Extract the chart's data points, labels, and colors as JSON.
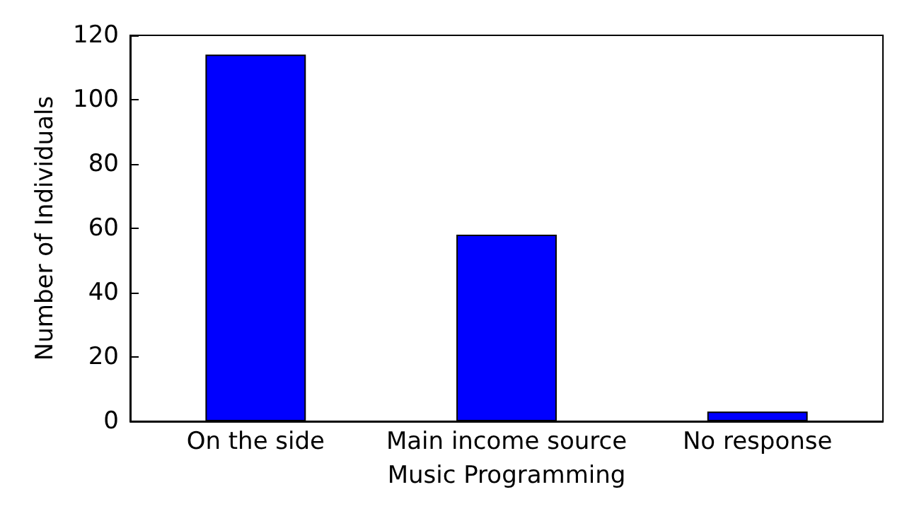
{
  "chart_data": {
    "type": "bar",
    "xlabel": "Music Programming",
    "ylabel": "Number of Individuals",
    "categories": [
      "On the side",
      "Main income source",
      "No response"
    ],
    "values": [
      114,
      58,
      3
    ],
    "color": "#0000ff",
    "ylim": [
      0,
      120
    ],
    "yticks": [
      0,
      20,
      40,
      60,
      80,
      100,
      120
    ],
    "grid": false
  }
}
